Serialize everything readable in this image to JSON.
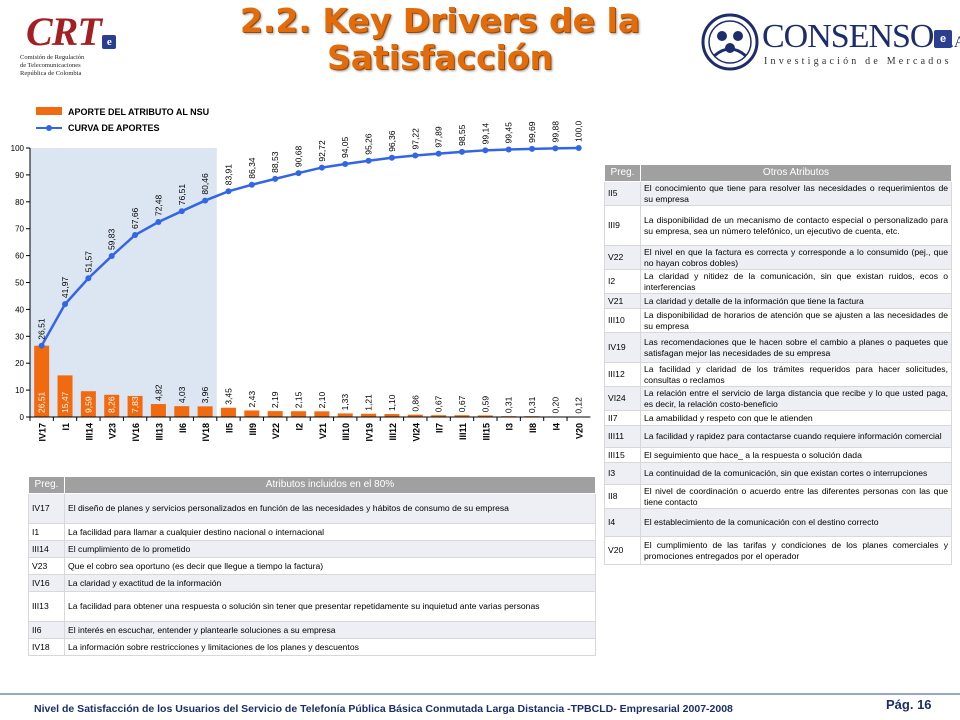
{
  "header": {
    "title_line1": "2.2. Key Drivers de la",
    "title_line2": "Satisfacción",
    "crt_logo_text": "CRT",
    "crt_org": "Comisión de Regulación\nde Telecomunicaciones\nRepública de Colombia",
    "consenso_brand": "CONSENSO",
    "consenso_sa": "S.A.",
    "consenso_tagline": "Investigación de Mercados"
  },
  "colors": {
    "title": "#E26B0A",
    "bars": "#F26A10",
    "line": "#3366E6",
    "highlight": "#DCE6F2",
    "table_header": "#A0A0A0",
    "footer_text": "#1D2D6B"
  },
  "chart_data": {
    "type": "bar",
    "combo": "bar+line",
    "categories": [
      "IV17",
      "I1",
      "III14",
      "V23",
      "IV16",
      "III13",
      "II6",
      "IV18",
      "II5",
      "III9",
      "V22",
      "I2",
      "V21",
      "III10",
      "IV19",
      "III12",
      "VI24",
      "II7",
      "III11",
      "III15",
      "I3",
      "II8",
      "I4",
      "V20"
    ],
    "series": [
      {
        "name": "APORTE DEL ATRIBUTO AL NSU",
        "kind": "bar",
        "values": [
          26.51,
          15.47,
          9.59,
          8.26,
          7.83,
          4.82,
          4.03,
          3.96,
          3.45,
          2.43,
          2.19,
          2.15,
          2.1,
          1.33,
          1.21,
          1.1,
          0.86,
          0.67,
          0.67,
          0.59,
          0.31,
          0.31,
          0.2,
          0.12
        ],
        "labels": [
          "26,51",
          "15,47",
          "9,59",
          "8,26",
          "7,83",
          "4,82",
          "4,03",
          "3,96",
          "3,45",
          "2,43",
          "2,19",
          "2,15",
          "2,10",
          "1,33",
          "1,21",
          "1,10",
          "0,86",
          "0,67",
          "0,67",
          "0,59",
          "0,31",
          "0,31",
          "0,20",
          "0,12"
        ]
      },
      {
        "name": "CURVA DE APORTES",
        "kind": "line",
        "values": [
          26.51,
          41.97,
          51.57,
          59.83,
          67.66,
          72.48,
          76.51,
          80.46,
          83.91,
          86.34,
          88.53,
          90.68,
          92.72,
          94.05,
          95.26,
          96.36,
          97.22,
          97.89,
          98.55,
          99.14,
          99.45,
          99.69,
          99.88,
          100.0
        ],
        "labels": [
          "26,51",
          "41,97",
          "51,57",
          "59,83",
          "67,66",
          "72,48",
          "76,51",
          "80,46",
          "83,91",
          "86,34",
          "88,53",
          "90,68",
          "92,72",
          "94,05",
          "95,26",
          "96,36",
          "97,22",
          "97,89",
          "98,55",
          "99,14",
          "99,45",
          "99,69",
          "99,88",
          "100,0"
        ]
      }
    ],
    "y_ticks": [
      "0",
      "10",
      "20",
      "30",
      "40",
      "50",
      "60",
      "70",
      "80",
      "90",
      "100"
    ],
    "ylim": [
      0,
      100
    ],
    "highlight_through_category": "IV18",
    "legend_position": "top-left",
    "grid": false
  },
  "table_included": {
    "header_code": "Preg.",
    "header_desc": "Atributos incluidos en el 80%",
    "rows": [
      {
        "code": "IV17",
        "desc": "El diseño de planes y servicios personalizados en función de las necesidades y hábitos de consumo de su empresa"
      },
      {
        "code": "I1",
        "desc": "La facilidad para llamar a cualquier destino nacional o internacional"
      },
      {
        "code": "III14",
        "desc": "El cumplimiento de lo prometido"
      },
      {
        "code": "V23",
        "desc": "Que el cobro sea oportuno (es decir que llegue a tiempo la factura)"
      },
      {
        "code": "IV16",
        "desc": "La claridad y exactitud de la información"
      },
      {
        "code": "III13",
        "desc": "La facilidad para obtener una respuesta o solución sin tener que presentar repetidamente su inquietud ante varias personas"
      },
      {
        "code": "II6",
        "desc": "El interés en escuchar, entender y plantearle soluciones a su empresa"
      },
      {
        "code": "IV18",
        "desc": "La información sobre restricciones y limitaciones de los planes y descuentos"
      }
    ]
  },
  "table_other": {
    "header_code": "Preg.",
    "header_desc": "Otros Atributos",
    "rows": [
      {
        "code": "II5",
        "desc": "El conocimiento que tiene para resolver las necesidades o requerimientos de su empresa"
      },
      {
        "code": "III9",
        "desc": "La disponibilidad de un mecanismo de contacto especial o personalizado para su empresa, sea un número telefónico, un ejecutivo de cuenta, etc."
      },
      {
        "code": "V22",
        "desc": "El nivel en que la factura es correcta y corresponde a lo consumido (pej., que no hayan cobros dobles)"
      },
      {
        "code": "I2",
        "desc": "La claridad y nitidez de la comunicación, sin que existan ruidos, ecos o interferencias"
      },
      {
        "code": "V21",
        "desc": "La claridad y detalle de la información que tiene la factura"
      },
      {
        "code": "III10",
        "desc": "La disponibilidad de horarios de atención que se ajusten a las necesidades de su empresa"
      },
      {
        "code": "IV19",
        "desc": "Las recomendaciones que le hacen sobre el cambio a planes o paquetes que satisfagan mejor las necesidades de su empresa"
      },
      {
        "code": "III12",
        "desc": "La facilidad y claridad de los trámites requeridos para hacer solicitudes, consultas o reclamos"
      },
      {
        "code": "VI24",
        "desc": "La relación entre el servicio de larga distancia que recibe y lo que usted paga, es decir, la relación costo-beneficio"
      },
      {
        "code": "II7",
        "desc": "La amabilidad y respeto con que le atienden"
      },
      {
        "code": "III11",
        "desc": "La facilidad y rapidez para contactarse cuando requiere información comercial"
      },
      {
        "code": "III15",
        "desc": "El seguimiento que hace_ a la respuesta o solución dada"
      },
      {
        "code": "I3",
        "desc": "La continuidad de la comunicación, sin que existan cortes o interrupciones"
      },
      {
        "code": "II8",
        "desc": "El nivel de coordinación o acuerdo entre las diferentes personas con las que tiene contacto"
      },
      {
        "code": "I4",
        "desc": "El establecimiento de la comunicación con el destino correcto"
      },
      {
        "code": "V20",
        "desc": "El cumplimiento de las tarifas y condiciones de los planes comerciales y promociones entregados por el operador"
      }
    ]
  },
  "footer": {
    "text": "Nivel de Satisfacción de los Usuarios del Servicio de Telefonía Pública Básica Conmutada Larga Distancia -TPBCLD- Empresarial 2007-2008",
    "page": "Pág. 16"
  }
}
